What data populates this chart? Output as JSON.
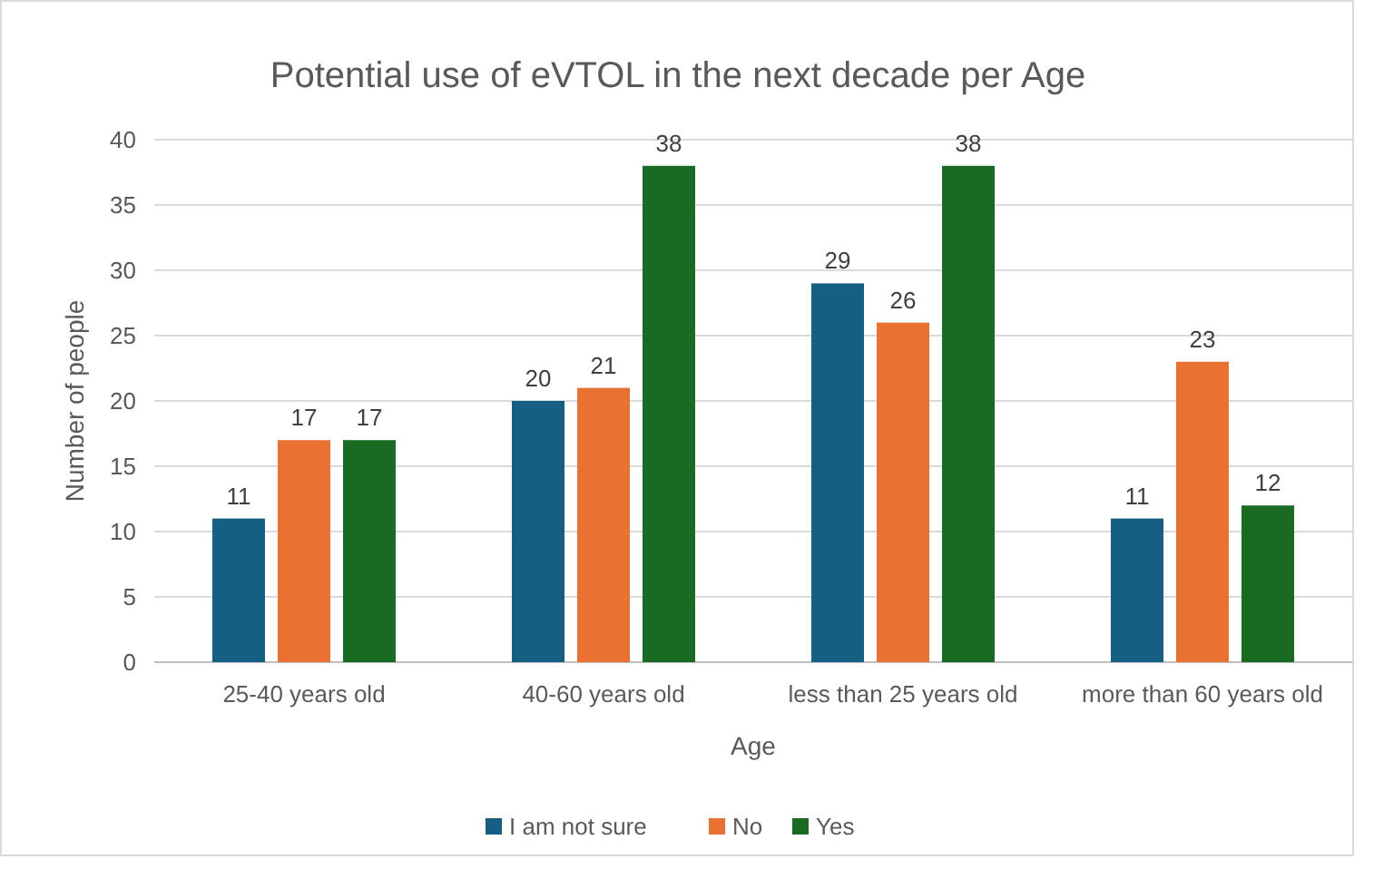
{
  "chart_data": {
    "type": "bar",
    "title": "Potential use of eVTOL in the next decade per Age",
    "xlabel": "Age",
    "ylabel": "Number of people",
    "categories": [
      "25-40 years old",
      "40-60 years old",
      "less than 25 years old",
      "more than 60 years old"
    ],
    "series": [
      {
        "name": "I am not sure",
        "color": "#156082",
        "values": [
          11,
          20,
          29,
          11
        ]
      },
      {
        "name": "No",
        "color": "#e97132",
        "values": [
          17,
          21,
          26,
          23
        ]
      },
      {
        "name": "Yes",
        "color": "#196b24",
        "values": [
          17,
          38,
          38,
          12
        ]
      }
    ],
    "ylim": [
      0,
      40
    ],
    "yticks": [
      0,
      5,
      10,
      15,
      20,
      25,
      30,
      35,
      40
    ],
    "grid": "y",
    "legend": "bottom",
    "data_labels": true
  }
}
